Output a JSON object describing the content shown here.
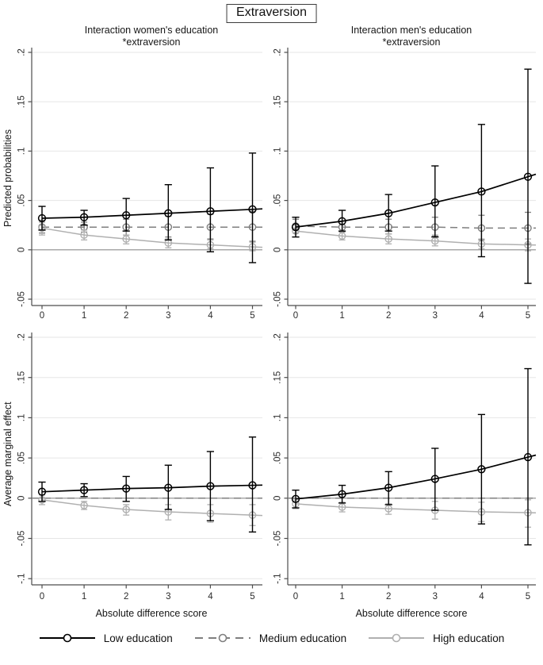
{
  "figure": {
    "title": "Extraversion",
    "legend": [
      {
        "label": "Low education",
        "color": "#000000",
        "dash": "solid",
        "marker": true
      },
      {
        "label": "Medium education",
        "color": "#7f7f7f",
        "dash": "dashed",
        "marker": true
      },
      {
        "label": "High education",
        "color": "#b0b0b0",
        "dash": "solid",
        "marker": true
      }
    ],
    "colors": {
      "grid": "#e6e6e6",
      "zero_line": "#8f8f8f",
      "axis": "#4d4d4d",
      "text": "#2b2b2b"
    }
  },
  "chart_data": [
    {
      "type": "line",
      "title": [
        "Interaction women's education",
        "*extraversion"
      ],
      "ylabel": "Predicted probabilities",
      "xlabel": "",
      "x": [
        0,
        1,
        2,
        3,
        4,
        5
      ],
      "ylim": [
        -0.05,
        0.2
      ],
      "yticks": [
        -0.05,
        0,
        0.05,
        0.1,
        0.15,
        0.2
      ],
      "ytick_labels": [
        "-.05",
        "0",
        ".05",
        ".1",
        ".15",
        ".2"
      ],
      "grid": true,
      "series": [
        {
          "name": "Medium education",
          "color": "#7f7f7f",
          "dash": "dashed",
          "marker": true,
          "full_width": false,
          "values": [
            0.023,
            0.023,
            0.023,
            0.023,
            0.023,
            0.023
          ],
          "ci_low": [
            0.017,
            0.018,
            0.015,
            0.013,
            0.011,
            0.008
          ],
          "ci_high": [
            0.03,
            0.028,
            0.031,
            0.034,
            0.036,
            0.039
          ]
        },
        {
          "name": "High education",
          "color": "#b0b0b0",
          "dash": "solid",
          "marker": true,
          "full_width": false,
          "values": [
            0.022,
            0.015,
            0.011,
            0.007,
            0.005,
            0.003
          ],
          "ci_low": [
            0.015,
            0.01,
            0.006,
            0.002,
            0.001,
            -0.001
          ],
          "ci_high": [
            0.028,
            0.02,
            0.015,
            0.011,
            0.01,
            0.009
          ]
        },
        {
          "name": "Low education",
          "color": "#000000",
          "dash": "solid",
          "marker": true,
          "full_width": false,
          "values": [
            0.032,
            0.033,
            0.035,
            0.037,
            0.039,
            0.041
          ],
          "ci_low": [
            0.02,
            0.025,
            0.019,
            0.01,
            -0.002,
            -0.013
          ],
          "ci_high": [
            0.044,
            0.04,
            0.052,
            0.066,
            0.083,
            0.098
          ]
        }
      ]
    },
    {
      "type": "line",
      "title": [
        "Interaction men's education",
        "*extraversion"
      ],
      "ylabel": "",
      "xlabel": "",
      "x": [
        0,
        1,
        2,
        3,
        4,
        5
      ],
      "ylim": [
        -0.05,
        0.2
      ],
      "yticks": [
        -0.05,
        0,
        0.05,
        0.1,
        0.15,
        0.2
      ],
      "ytick_labels": [
        "-.05",
        "0",
        ".05",
        ".1",
        ".15",
        ".2"
      ],
      "grid": true,
      "series": [
        {
          "name": "Medium education",
          "color": "#7f7f7f",
          "dash": "dashed",
          "marker": true,
          "full_width": false,
          "values": [
            0.024,
            0.023,
            0.023,
            0.023,
            0.022,
            0.022
          ],
          "ci_low": [
            0.017,
            0.018,
            0.016,
            0.014,
            0.01,
            0.006
          ],
          "ci_high": [
            0.031,
            0.029,
            0.031,
            0.033,
            0.035,
            0.038
          ]
        },
        {
          "name": "High education",
          "color": "#b0b0b0",
          "dash": "solid",
          "marker": true,
          "full_width": false,
          "values": [
            0.019,
            0.014,
            0.011,
            0.009,
            0.006,
            0.005
          ],
          "ci_low": [
            0.013,
            0.01,
            0.006,
            0.004,
            0.001,
            -0.001
          ],
          "ci_high": [
            0.025,
            0.019,
            0.016,
            0.015,
            0.011,
            0.011
          ]
        },
        {
          "name": "Low education",
          "color": "#000000",
          "dash": "solid",
          "marker": true,
          "full_width": false,
          "values": [
            0.023,
            0.029,
            0.037,
            0.048,
            0.059,
            0.074
          ],
          "ci_low": [
            0.013,
            0.019,
            0.019,
            0.013,
            -0.007,
            -0.034
          ],
          "ci_high": [
            0.033,
            0.04,
            0.056,
            0.085,
            0.127,
            0.183
          ]
        }
      ]
    },
    {
      "type": "line",
      "title": [
        "",
        ""
      ],
      "ylabel": "Average marginal effect",
      "xlabel": "Absolute difference score",
      "x": [
        0,
        1,
        2,
        3,
        4,
        5
      ],
      "ylim": [
        -0.1,
        0.2
      ],
      "yticks": [
        -0.1,
        -0.05,
        0,
        0.05,
        0.1,
        0.15,
        0.2
      ],
      "ytick_labels": [
        "-.1",
        "-.05",
        "0",
        ".05",
        ".1",
        ".15",
        ".2"
      ],
      "grid": true,
      "series": [
        {
          "name": "Medium education",
          "color": "#7f7f7f",
          "dash": "dashed",
          "marker": false,
          "full_width": true,
          "values": [
            0,
            0,
            0,
            0,
            0,
            0
          ],
          "ci_low": null,
          "ci_high": null
        },
        {
          "name": "High education",
          "color": "#b0b0b0",
          "dash": "solid",
          "marker": true,
          "full_width": false,
          "values": [
            -0.002,
            -0.009,
            -0.014,
            -0.017,
            -0.019,
            -0.021
          ],
          "ci_low": [
            -0.008,
            -0.014,
            -0.021,
            -0.027,
            -0.03,
            -0.034
          ],
          "ci_high": [
            0.004,
            -0.004,
            -0.008,
            -0.008,
            -0.008,
            -0.008
          ]
        },
        {
          "name": "Low education",
          "color": "#000000",
          "dash": "solid",
          "marker": true,
          "full_width": false,
          "values": [
            0.008,
            0.01,
            0.012,
            0.013,
            0.015,
            0.016
          ],
          "ci_low": [
            -0.004,
            0.002,
            -0.004,
            -0.014,
            -0.028,
            -0.042
          ],
          "ci_high": [
            0.02,
            0.018,
            0.027,
            0.041,
            0.058,
            0.076
          ]
        }
      ]
    },
    {
      "type": "line",
      "title": [
        "",
        ""
      ],
      "ylabel": "",
      "xlabel": "Absolute difference score",
      "x": [
        0,
        1,
        2,
        3,
        4,
        5
      ],
      "ylim": [
        -0.1,
        0.2
      ],
      "yticks": [
        -0.1,
        -0.05,
        0,
        0.05,
        0.1,
        0.15,
        0.2
      ],
      "ytick_labels": [
        "-.1",
        "-.05",
        "0",
        ".05",
        ".1",
        ".15",
        ".2"
      ],
      "grid": true,
      "series": [
        {
          "name": "Medium education",
          "color": "#7f7f7f",
          "dash": "dashed",
          "marker": false,
          "full_width": true,
          "values": [
            0,
            0,
            0,
            0,
            0,
            0
          ],
          "ci_low": null,
          "ci_high": null
        },
        {
          "name": "High education",
          "color": "#b0b0b0",
          "dash": "solid",
          "marker": true,
          "full_width": false,
          "values": [
            -0.007,
            -0.011,
            -0.013,
            -0.015,
            -0.017,
            -0.018
          ],
          "ci_low": [
            -0.013,
            -0.017,
            -0.02,
            -0.026,
            -0.029,
            -0.036
          ],
          "ci_high": [
            -0.001,
            -0.005,
            -0.007,
            -0.004,
            -0.005,
            -0.002
          ]
        },
        {
          "name": "Low education",
          "color": "#000000",
          "dash": "solid",
          "marker": true,
          "full_width": false,
          "values": [
            -0.001,
            0.005,
            0.013,
            0.024,
            0.036,
            0.051
          ],
          "ci_low": [
            -0.012,
            -0.006,
            -0.008,
            -0.015,
            -0.032,
            -0.058
          ],
          "ci_high": [
            0.01,
            0.016,
            0.033,
            0.062,
            0.104,
            0.161
          ]
        }
      ]
    }
  ]
}
